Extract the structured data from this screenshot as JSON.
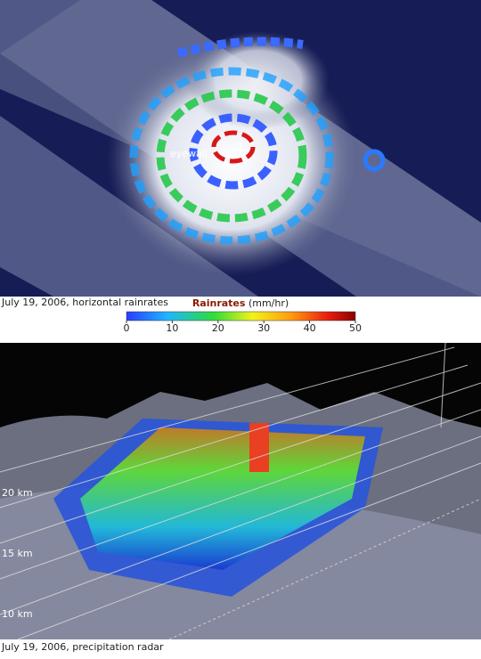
{
  "top_image": {
    "annotation": "eyewall",
    "caption": "July 19, 2006, horizontal rainrates"
  },
  "colorbar": {
    "title": "Rainrates",
    "unit": "(mm/hr)",
    "ticks": [
      0,
      10,
      20,
      30,
      40,
      50
    ]
  },
  "bottom_image": {
    "height_labels": [
      "20 km",
      "15 km",
      "10 km"
    ],
    "caption": "July 19, 2006, precipitation radar"
  }
}
